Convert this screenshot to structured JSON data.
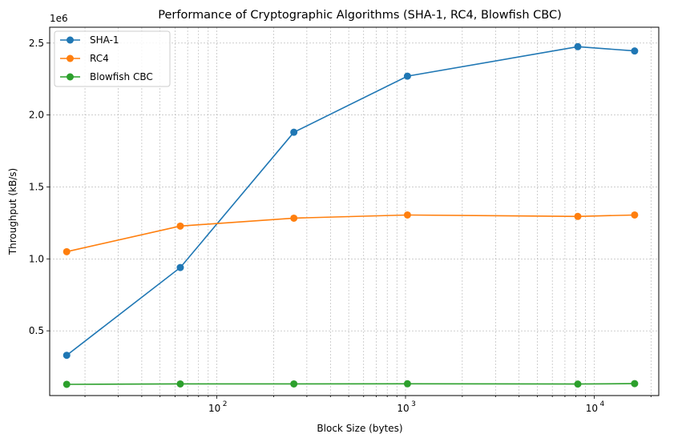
{
  "chart_data": {
    "type": "line",
    "title": "Performance of Cryptographic Algorithms (SHA-1, RC4, Blowfish CBC)",
    "xlabel": "Block Size (bytes)",
    "ylabel": "Throughput (kB/s)",
    "x_scale": "log",
    "y_offset_label": "1e6",
    "x": [
      16,
      64,
      256,
      1024,
      8192,
      16384
    ],
    "xlim": [
      13,
      22000
    ],
    "ylim": [
      50000,
      2610000
    ],
    "y_ticks": [
      500000,
      1000000,
      1500000,
      2000000,
      2500000
    ],
    "y_tick_labels": [
      "0.5",
      "1.0",
      "1.5",
      "2.0",
      "2.5"
    ],
    "x_tick_labels": [
      {
        "value": 100,
        "base": "10",
        "exp": "2"
      },
      {
        "value": 1000,
        "base": "10",
        "exp": "3"
      },
      {
        "value": 10000,
        "base": "10",
        "exp": "4"
      }
    ],
    "grid": true,
    "legend_position": "top-left",
    "series": [
      {
        "name": "SHA-1",
        "color": "#1f77b4",
        "values": [
          330000,
          940000,
          1880000,
          2270000,
          2475000,
          2445000
        ]
      },
      {
        "name": "RC4",
        "color": "#ff7f0e",
        "values": [
          1050000,
          1228000,
          1283000,
          1305000,
          1295000,
          1305000
        ]
      },
      {
        "name": "Blowfish CBC",
        "color": "#2ca02c",
        "values": [
          128000,
          131000,
          131000,
          132000,
          130000,
          133000
        ]
      }
    ]
  }
}
